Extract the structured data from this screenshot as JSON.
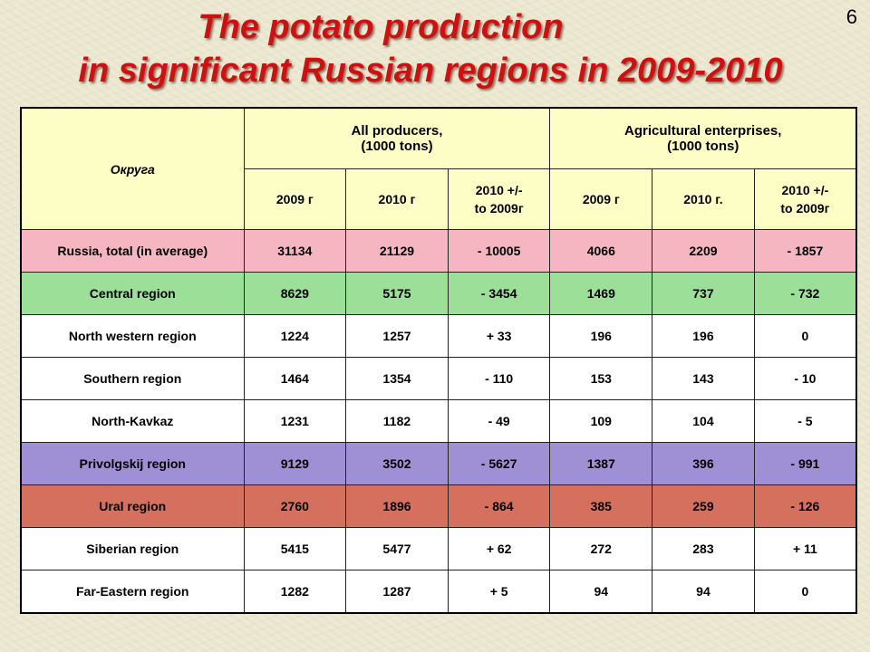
{
  "slide": {
    "title_line1": "The potato production",
    "title_line2": "in significant Russian regions in 2009-2010",
    "page_number": "6"
  },
  "table": {
    "region_header": "Округа",
    "group_all": "All producers,\n(1000 tons)",
    "group_agri": "Agricultural enterprises,\n(1000 tons)",
    "subheaders": [
      "2009 г",
      "2010 г",
      "2010 +/-\nto 2009г",
      "2009 г",
      "2010 г.",
      "2010 +/-\nto 2009г"
    ],
    "rows": [
      {
        "region": "Russia, total (in average)",
        "values": [
          "31134",
          "21129",
          "- 10005",
          "4066",
          "2209",
          "- 1857"
        ],
        "color": "#f6b6c1"
      },
      {
        "region": "Central region",
        "values": [
          "8629",
          "5175",
          "- 3454",
          "1469",
          "737",
          "- 732"
        ],
        "color": "#9bdf99"
      },
      {
        "region": "North western region",
        "values": [
          "1224",
          "1257",
          "+ 33",
          "196",
          "196",
          "0"
        ],
        "color": "#ffffff"
      },
      {
        "region": "Southern region",
        "values": [
          "1464",
          "1354",
          "- 110",
          "153",
          "143",
          "- 10"
        ],
        "color": "#ffffff"
      },
      {
        "region": "North-Kavkaz",
        "values": [
          "1231",
          "1182",
          "- 49",
          "109",
          "104",
          "- 5"
        ],
        "color": "#ffffff"
      },
      {
        "region": "Privolgskij region",
        "values": [
          "9129",
          "3502",
          "- 5627",
          "1387",
          "396",
          "- 991"
        ],
        "color": "#9f90d5"
      },
      {
        "region": "Ural region",
        "values": [
          "2760",
          "1896",
          "- 864",
          "385",
          "259",
          "- 126"
        ],
        "color": "#d5705e"
      },
      {
        "region": "Siberian region",
        "values": [
          "5415",
          "5477",
          "+ 62",
          "272",
          "283",
          "+ 11"
        ],
        "color": "#ffffff"
      },
      {
        "region": "Far-Eastern region",
        "values": [
          "1282",
          "1287",
          "+ 5",
          "94",
          "94",
          "0"
        ],
        "color": "#ffffff"
      }
    ]
  }
}
